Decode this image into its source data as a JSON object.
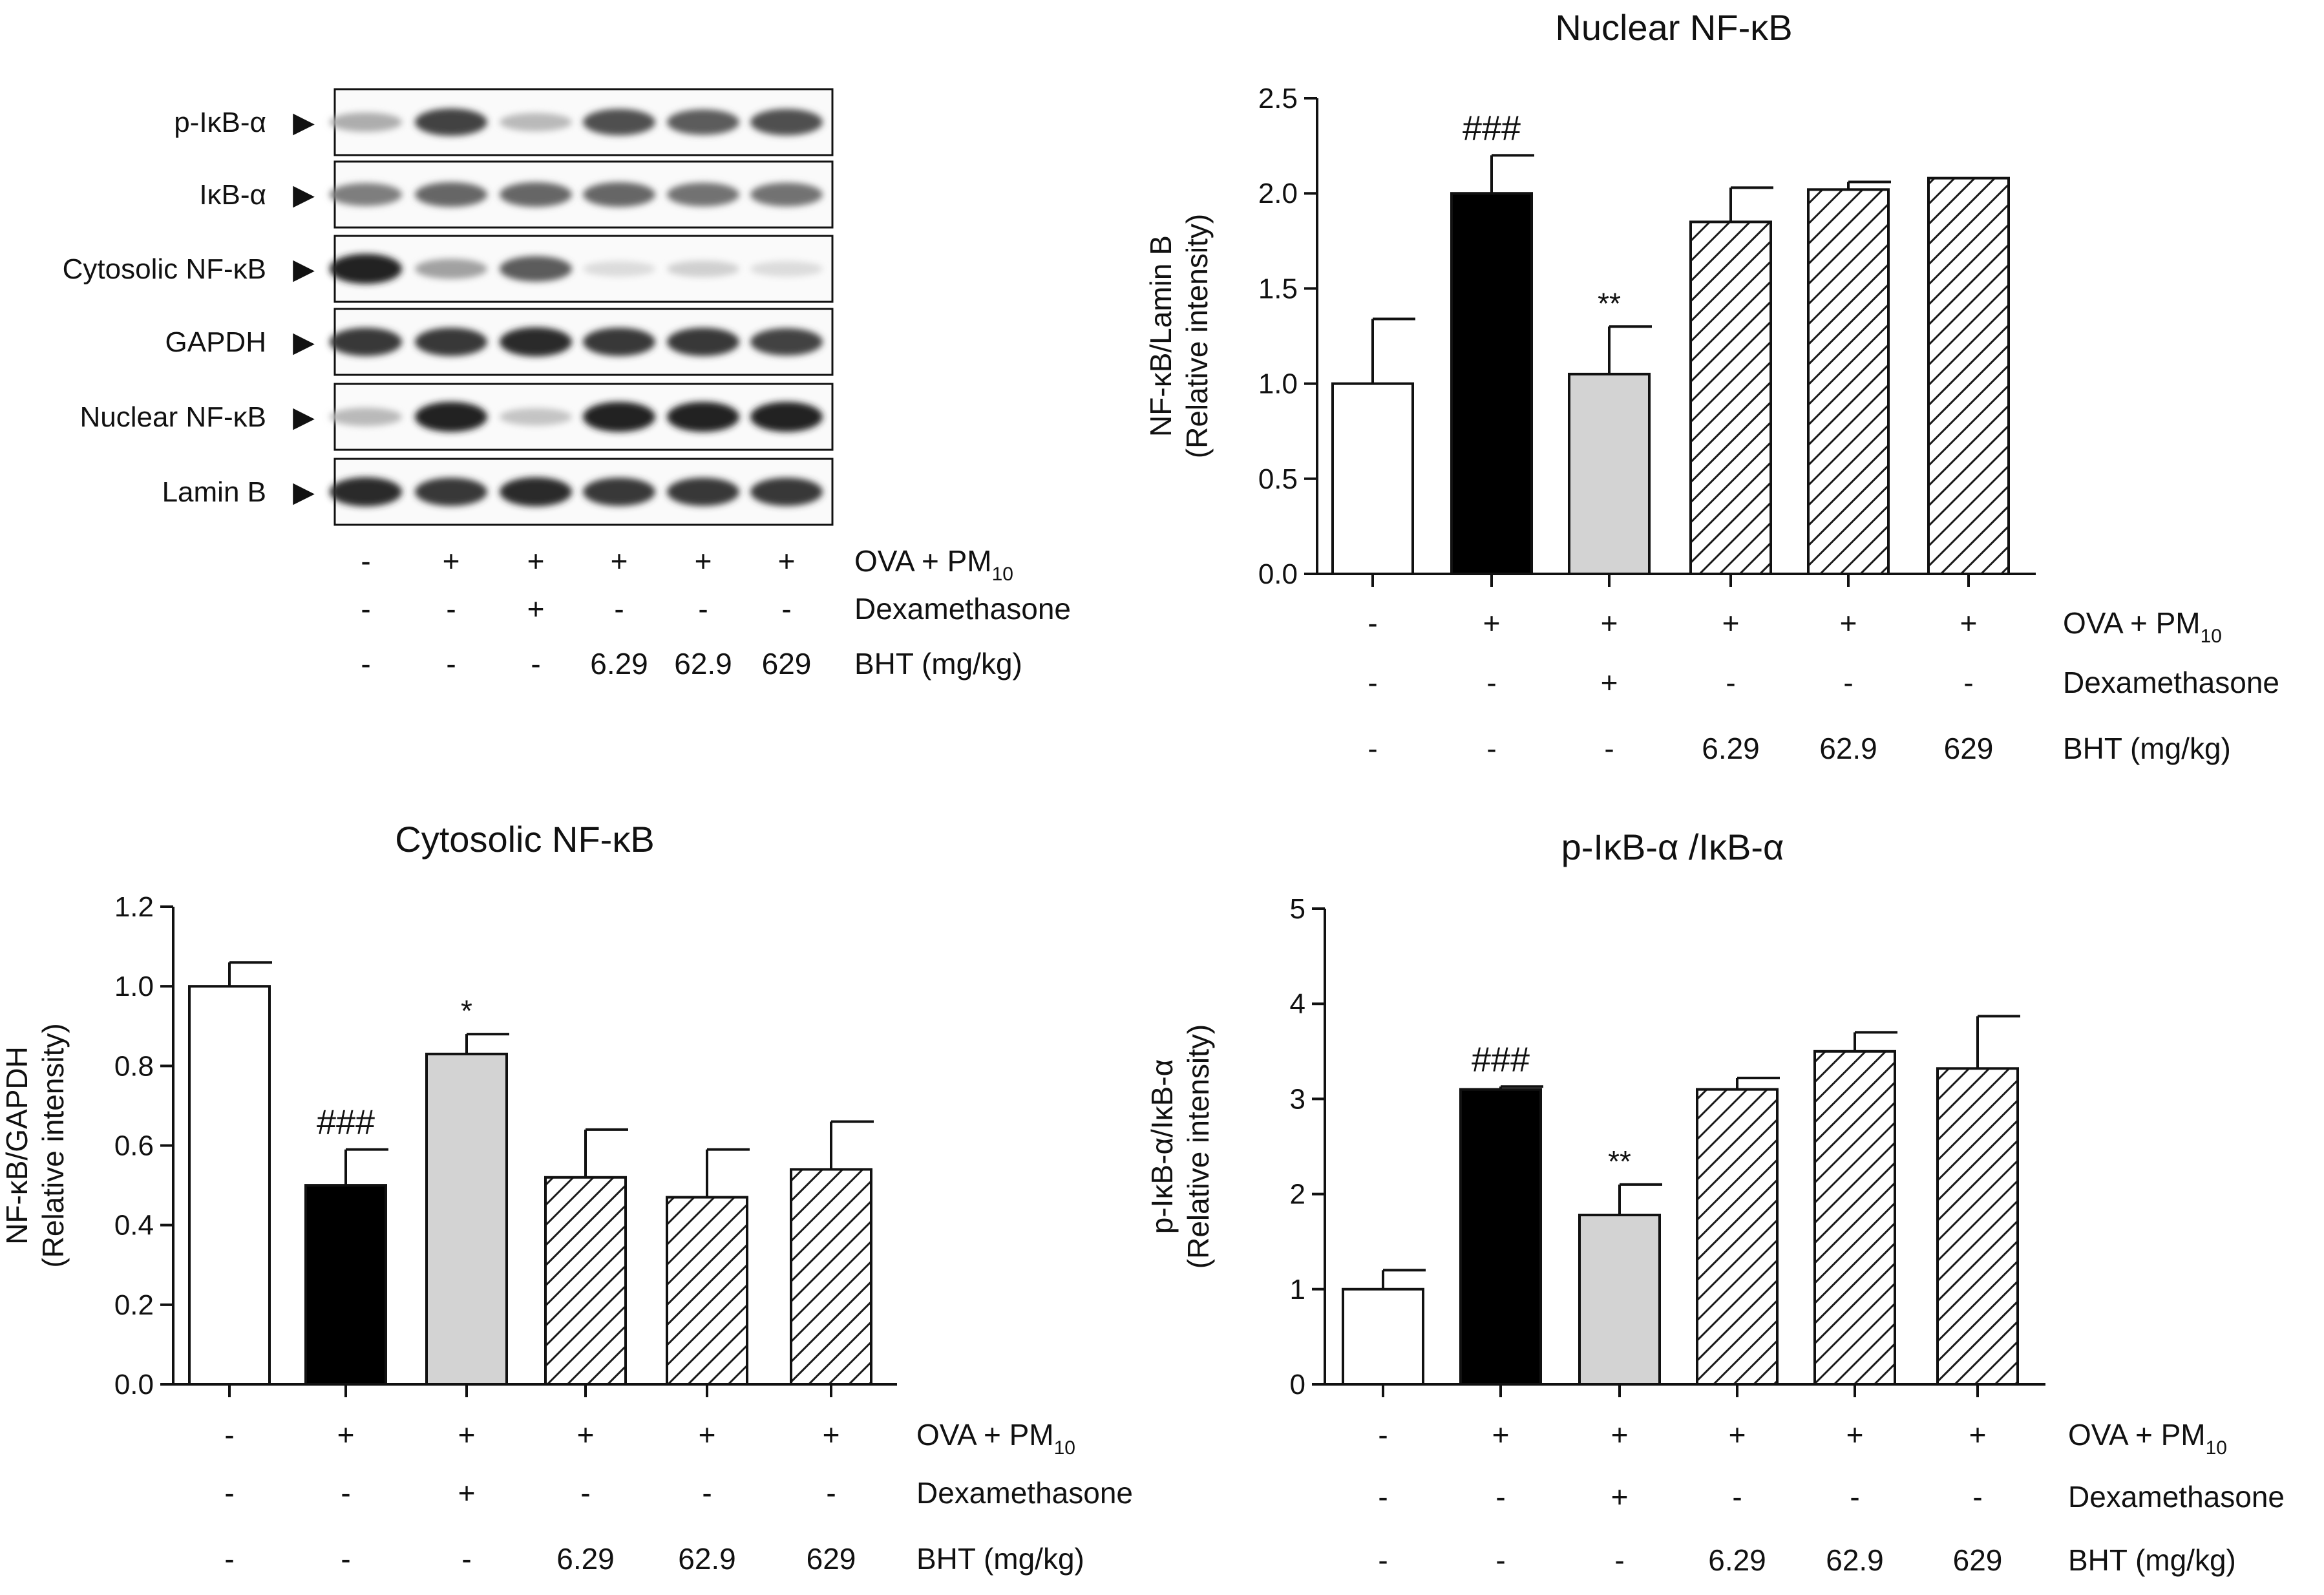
{
  "western_blot": {
    "bands": [
      {
        "label": "p-IκB-α",
        "arrow": "▶",
        "intensity": [
          0.35,
          0.8,
          0.3,
          0.75,
          0.7,
          0.75
        ]
      },
      {
        "label": "IκB-α",
        "arrow": "▶",
        "intensity": [
          0.55,
          0.65,
          0.65,
          0.65,
          0.6,
          0.6
        ]
      },
      {
        "label": "Cytosolic NF-κB",
        "arrow": "▶",
        "intensity": [
          0.95,
          0.4,
          0.7,
          0.15,
          0.2,
          0.15
        ]
      },
      {
        "label": "GAPDH",
        "arrow": "▶",
        "intensity": [
          0.85,
          0.85,
          0.9,
          0.85,
          0.85,
          0.8
        ]
      },
      {
        "label": "Nuclear NF-κB",
        "arrow": "▶",
        "intensity": [
          0.3,
          0.95,
          0.25,
          0.95,
          0.95,
          0.95
        ]
      },
      {
        "label": "Lamin B",
        "arrow": "▶",
        "intensity": [
          0.9,
          0.85,
          0.9,
          0.85,
          0.85,
          0.85
        ]
      }
    ],
    "treatments": {
      "rows": [
        {
          "label": "OVA + PM",
          "sub": "10",
          "values": [
            "-",
            "+",
            "+",
            "+",
            "+",
            "+"
          ]
        },
        {
          "label": "Dexamethasone",
          "sub": "",
          "values": [
            "-",
            "-",
            "+",
            "-",
            "-",
            "-"
          ]
        },
        {
          "label": "BHT (mg/kg)",
          "sub": "",
          "values": [
            "-",
            "-",
            "-",
            "6.29",
            "62.9",
            "629"
          ]
        }
      ]
    }
  },
  "colors": {
    "control": "#ffffff",
    "model": "#000000",
    "dexamethasone": "#d3d3d3",
    "bht_hatch": "#1a1a1a",
    "axis": "#111111"
  },
  "chart_data": [
    {
      "id": "nuclear",
      "type": "bar",
      "title": "Nuclear NF-κB",
      "ylabel_line1": "NF-κB/Lamin B",
      "ylabel_line2": "(Relative intensity)",
      "ylim": [
        0,
        2.5
      ],
      "yticks": [
        0.0,
        0.5,
        1.0,
        1.5,
        2.0,
        2.5
      ],
      "ytick_labels": [
        "0.0",
        "0.5",
        "1.0",
        "1.5",
        "2.0",
        "2.5"
      ],
      "values": [
        1.0,
        2.0,
        1.05,
        1.85,
        2.02,
        2.08
      ],
      "errors": [
        0.34,
        0.2,
        0.25,
        0.18,
        0.04,
        0.0
      ],
      "fills": [
        "control",
        "model",
        "dexamethasone",
        "hatch",
        "hatch",
        "hatch"
      ],
      "annotations": [
        "",
        "###",
        "**",
        "",
        "",
        ""
      ],
      "treatment_rows": [
        {
          "label": "OVA + PM",
          "sub": "10",
          "values": [
            "-",
            "+",
            "+",
            "+",
            "+",
            "+"
          ]
        },
        {
          "label": "Dexamethasone",
          "sub": "",
          "values": [
            "-",
            "-",
            "+",
            "-",
            "-",
            "-"
          ]
        },
        {
          "label": "BHT (mg/kg)",
          "sub": "",
          "values": [
            "-",
            "-",
            "-",
            "6.29",
            "62.9",
            "629"
          ]
        }
      ]
    },
    {
      "id": "cytosolic",
      "type": "bar",
      "title": "Cytosolic NF-κB",
      "ylabel_line1": "NF-κB/GAPDH",
      "ylabel_line2": "(Relative intensity)",
      "ylim": [
        0,
        1.2
      ],
      "yticks": [
        0.0,
        0.2,
        0.4,
        0.6,
        0.8,
        1.0,
        1.2
      ],
      "ytick_labels": [
        "0.0",
        "0.2",
        "0.4",
        "0.6",
        "0.8",
        "1.0",
        "1.2"
      ],
      "values": [
        1.0,
        0.5,
        0.83,
        0.52,
        0.47,
        0.54
      ],
      "errors": [
        0.06,
        0.09,
        0.05,
        0.12,
        0.12,
        0.12
      ],
      "fills": [
        "control",
        "model",
        "dexamethasone",
        "hatch",
        "hatch",
        "hatch"
      ],
      "annotations": [
        "",
        "###",
        "*",
        "",
        "",
        ""
      ],
      "treatment_rows": [
        {
          "label": "OVA + PM",
          "sub": "10",
          "values": [
            "-",
            "+",
            "+",
            "+",
            "+",
            "+"
          ]
        },
        {
          "label": "Dexamethasone",
          "sub": "",
          "values": [
            "-",
            "-",
            "+",
            "-",
            "-",
            "-"
          ]
        },
        {
          "label": "BHT (mg/kg)",
          "sub": "",
          "values": [
            "-",
            "-",
            "-",
            "6.29",
            "62.9",
            "629"
          ]
        }
      ]
    },
    {
      "id": "ratio",
      "type": "bar",
      "title": "p-IκB-α /IκB-α",
      "ylabel_line1": "p-IκB-α/IκB-α",
      "ylabel_line2": "(Relative intensity)",
      "ylim": [
        0,
        5
      ],
      "yticks": [
        0,
        1,
        2,
        3,
        4,
        5
      ],
      "ytick_labels": [
        "0",
        "1",
        "2",
        "3",
        "4",
        "5"
      ],
      "values": [
        1.0,
        3.1,
        1.78,
        3.1,
        3.5,
        3.32
      ],
      "errors": [
        0.2,
        0.03,
        0.32,
        0.12,
        0.2,
        0.55
      ],
      "fills": [
        "control",
        "model",
        "dexamethasone",
        "hatch",
        "hatch",
        "hatch"
      ],
      "annotations": [
        "",
        "###",
        "**",
        "",
        "",
        ""
      ],
      "treatment_rows": [
        {
          "label": "OVA + PM",
          "sub": "10",
          "values": [
            "-",
            "+",
            "+",
            "+",
            "+",
            "+"
          ]
        },
        {
          "label": "Dexamethasone",
          "sub": "",
          "values": [
            "-",
            "-",
            "+",
            "-",
            "-",
            "-"
          ]
        },
        {
          "label": "BHT (mg/kg)",
          "sub": "",
          "values": [
            "-",
            "-",
            "-",
            "6.29",
            "62.9",
            "629"
          ]
        }
      ]
    }
  ]
}
